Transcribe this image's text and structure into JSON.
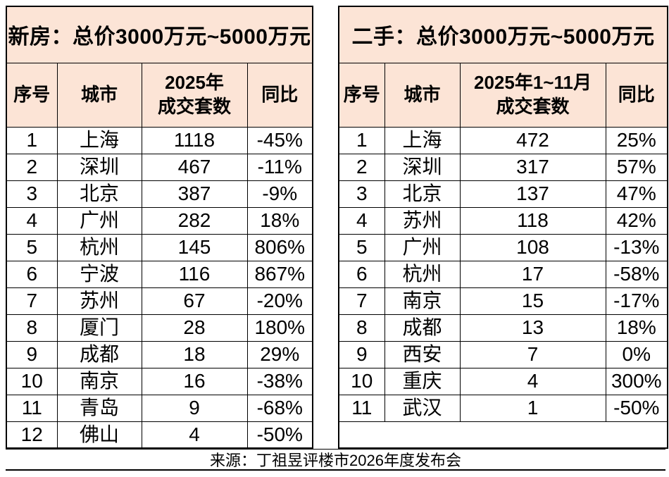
{
  "colors": {
    "header_fill": "#fce4d6",
    "border": "#000000",
    "background": "#ffffff",
    "text": "#000000"
  },
  "chart_data": [
    {
      "type": "table",
      "title": "新房：总价3000万元~5000万元",
      "columns": [
        "序号",
        "城市",
        "2025年\n成交套数",
        "同比"
      ],
      "column_meanings": [
        "rank",
        "city",
        "units_sold",
        "yoy_change"
      ],
      "rows": [
        [
          "1",
          "上海",
          "1118",
          "-45%"
        ],
        [
          "2",
          "深圳",
          "467",
          "-11%"
        ],
        [
          "3",
          "北京",
          "387",
          "-9%"
        ],
        [
          "4",
          "广州",
          "282",
          "18%"
        ],
        [
          "5",
          "杭州",
          "145",
          "806%"
        ],
        [
          "6",
          "宁波",
          "116",
          "867%"
        ],
        [
          "7",
          "苏州",
          "67",
          "-20%"
        ],
        [
          "8",
          "厦门",
          "28",
          "180%"
        ],
        [
          "9",
          "成都",
          "18",
          "29%"
        ],
        [
          "10",
          "南京",
          "16",
          "-38%"
        ],
        [
          "11",
          "青岛",
          "9",
          "-68%"
        ],
        [
          "12",
          "佛山",
          "4",
          "-50%"
        ]
      ],
      "trailing_empty_row": false
    },
    {
      "type": "table",
      "title": "二手：总价3000万元~5000万元",
      "columns": [
        "序号",
        "城市",
        "2025年1~11月\n成交套数",
        "同比"
      ],
      "column_meanings": [
        "rank",
        "city",
        "units_sold",
        "yoy_change"
      ],
      "rows": [
        [
          "1",
          "上海",
          "472",
          "25%"
        ],
        [
          "2",
          "深圳",
          "317",
          "57%"
        ],
        [
          "3",
          "北京",
          "137",
          "47%"
        ],
        [
          "4",
          "苏州",
          "118",
          "42%"
        ],
        [
          "5",
          "广州",
          "108",
          "-13%"
        ],
        [
          "6",
          "杭州",
          "17",
          "-58%"
        ],
        [
          "7",
          "南京",
          "15",
          "-17%"
        ],
        [
          "8",
          "成都",
          "13",
          "18%"
        ],
        [
          "9",
          "西安",
          "7",
          "0%"
        ],
        [
          "10",
          "重庆",
          "4",
          "300%"
        ],
        [
          "11",
          "武汉",
          "1",
          "-50%"
        ]
      ],
      "trailing_empty_row": true
    }
  ],
  "footer": {
    "source_text": "来源：丁祖昱评楼市2026年度发布会"
  }
}
